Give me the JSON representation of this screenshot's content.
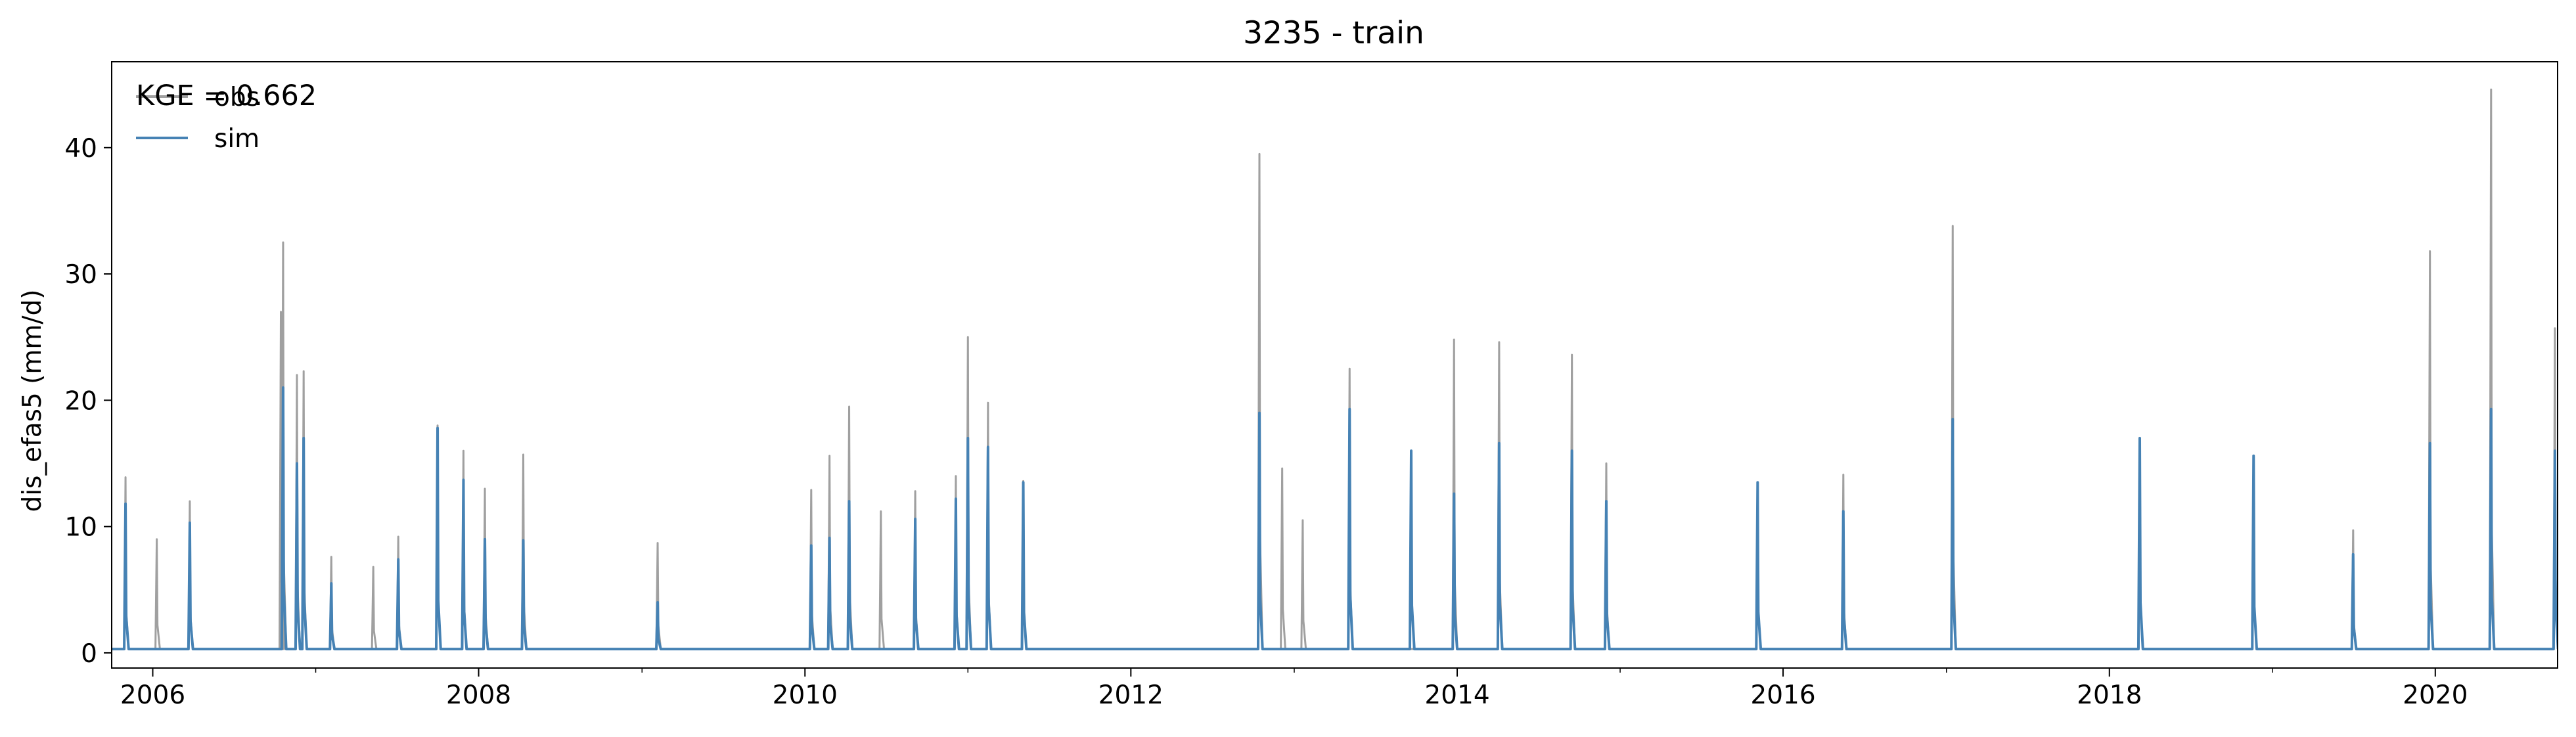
{
  "chart_data": {
    "type": "line",
    "title": "3235 - train",
    "xlabel": "",
    "ylabel": "dis_efas5 (mm/d)",
    "x_range": [
      "2005-10-01",
      "2020-10-01"
    ],
    "ylim": [
      -1.2,
      46.8
    ],
    "x_ticks": [
      "2006",
      "2008",
      "2010",
      "2012",
      "2014",
      "2016",
      "2018",
      "2020"
    ],
    "y_ticks": [
      "0",
      "10",
      "20",
      "30",
      "40"
    ],
    "grid": false,
    "legend_position": "top-left",
    "annotation": "KGE = 0.662",
    "baseline": 0.3,
    "series": [
      {
        "name": "obs",
        "color": "#a0a0a0",
        "peaks": [
          {
            "date": "2005-11-01",
            "value": 13.9
          },
          {
            "date": "2006-01-10",
            "value": 9.0
          },
          {
            "date": "2006-03-25",
            "value": 12.0
          },
          {
            "date": "2006-10-15",
            "value": 27.0
          },
          {
            "date": "2006-10-20",
            "value": 32.5
          },
          {
            "date": "2006-11-20",
            "value": 22.0
          },
          {
            "date": "2006-12-05",
            "value": 22.3
          },
          {
            "date": "2007-02-05",
            "value": 7.6
          },
          {
            "date": "2007-05-10",
            "value": 6.8
          },
          {
            "date": "2007-07-05",
            "value": 9.2
          },
          {
            "date": "2007-10-01",
            "value": 18.0
          },
          {
            "date": "2007-11-28",
            "value": 16.0
          },
          {
            "date": "2008-01-15",
            "value": 13.0
          },
          {
            "date": "2008-04-10",
            "value": 15.7
          },
          {
            "date": "2009-02-05",
            "value": 8.7
          },
          {
            "date": "2010-01-15",
            "value": 12.9
          },
          {
            "date": "2010-02-25",
            "value": 15.6
          },
          {
            "date": "2010-04-10",
            "value": 19.5
          },
          {
            "date": "2010-06-20",
            "value": 11.2
          },
          {
            "date": "2010-09-05",
            "value": 12.8
          },
          {
            "date": "2010-12-05",
            "value": 14.0
          },
          {
            "date": "2011-01-01",
            "value": 25.0
          },
          {
            "date": "2011-02-15",
            "value": 19.8
          },
          {
            "date": "2011-05-05",
            "value": 13.6
          },
          {
            "date": "2012-10-15",
            "value": 39.5
          },
          {
            "date": "2012-12-05",
            "value": 14.6
          },
          {
            "date": "2013-01-20",
            "value": 10.5
          },
          {
            "date": "2013-05-05",
            "value": 22.5
          },
          {
            "date": "2013-12-25",
            "value": 24.8
          },
          {
            "date": "2014-04-05",
            "value": 24.6
          },
          {
            "date": "2014-09-15",
            "value": 23.6
          },
          {
            "date": "2014-12-01",
            "value": 15.0
          },
          {
            "date": "2015-11-05",
            "value": 13.5
          },
          {
            "date": "2016-05-15",
            "value": 14.1
          },
          {
            "date": "2017-01-15",
            "value": 33.8
          },
          {
            "date": "2018-03-10",
            "value": 15.3
          },
          {
            "date": "2018-11-20",
            "value": 15.6
          },
          {
            "date": "2019-07-01",
            "value": 9.7
          },
          {
            "date": "2019-12-20",
            "value": 31.8
          },
          {
            "date": "2020-05-05",
            "value": 44.6
          },
          {
            "date": "2020-09-25",
            "value": 25.7
          }
        ]
      },
      {
        "name": "sim",
        "color": "#4682b4",
        "peaks": [
          {
            "date": "2005-11-01",
            "value": 11.8
          },
          {
            "date": "2006-03-25",
            "value": 10.3
          },
          {
            "date": "2006-10-20",
            "value": 21.0
          },
          {
            "date": "2006-11-20",
            "value": 15.0
          },
          {
            "date": "2006-12-05",
            "value": 17.0
          },
          {
            "date": "2007-02-05",
            "value": 5.5
          },
          {
            "date": "2007-07-05",
            "value": 7.4
          },
          {
            "date": "2007-10-01",
            "value": 17.8
          },
          {
            "date": "2007-11-28",
            "value": 13.7
          },
          {
            "date": "2008-01-15",
            "value": 9.0
          },
          {
            "date": "2008-04-10",
            "value": 8.9
          },
          {
            "date": "2009-02-05",
            "value": 4.0
          },
          {
            "date": "2010-01-15",
            "value": 8.5
          },
          {
            "date": "2010-02-25",
            "value": 9.1
          },
          {
            "date": "2010-04-10",
            "value": 12.0
          },
          {
            "date": "2010-09-05",
            "value": 10.6
          },
          {
            "date": "2010-12-05",
            "value": 12.2
          },
          {
            "date": "2011-01-01",
            "value": 17.0
          },
          {
            "date": "2011-02-15",
            "value": 16.3
          },
          {
            "date": "2011-05-05",
            "value": 13.5
          },
          {
            "date": "2012-10-15",
            "value": 19.0
          },
          {
            "date": "2013-05-05",
            "value": 19.3
          },
          {
            "date": "2013-09-20",
            "value": 16.0
          },
          {
            "date": "2013-12-25",
            "value": 12.6
          },
          {
            "date": "2014-04-05",
            "value": 16.6
          },
          {
            "date": "2014-09-15",
            "value": 16.0
          },
          {
            "date": "2014-12-01",
            "value": 12.0
          },
          {
            "date": "2015-11-05",
            "value": 13.5
          },
          {
            "date": "2016-05-15",
            "value": 11.2
          },
          {
            "date": "2017-01-15",
            "value": 18.5
          },
          {
            "date": "2018-03-10",
            "value": 17.0
          },
          {
            "date": "2018-11-20",
            "value": 15.6
          },
          {
            "date": "2019-07-01",
            "value": 7.8
          },
          {
            "date": "2019-12-20",
            "value": 16.6
          },
          {
            "date": "2020-05-05",
            "value": 19.3
          },
          {
            "date": "2020-09-25",
            "value": 16.0
          }
        ]
      }
    ]
  }
}
